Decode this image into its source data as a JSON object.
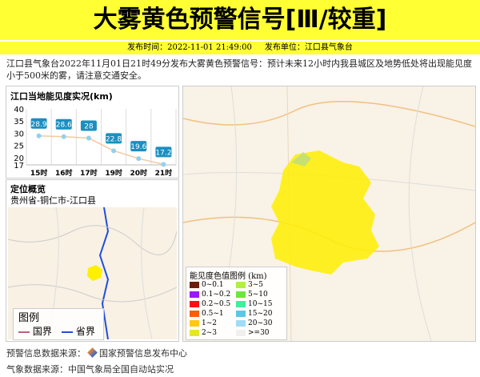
{
  "header": {
    "title": "大雾黄色预警信号[Ⅲ/较重]",
    "time_label": "发布时间：2022-11-01 21:49:00",
    "unit_label": "发布单位：江口县气象台"
  },
  "description": "江口县气象台2022年11月01日21时49分发布大雾黄色预警信号：预计未来12小时内我县城区及地势低处将出现能见度小于500米的雾，请注意交通安全。",
  "chart_data": {
    "type": "line",
    "title": "江口当地能见度实况(km)",
    "categories": [
      "15时",
      "16时",
      "17时",
      "19时",
      "20时",
      "21时"
    ],
    "values": [
      28.9,
      28.6,
      28,
      22.8,
      19.6,
      17.2
    ],
    "data_labels": [
      "28.9",
      "28.6",
      "28",
      "22.8",
      "19.6",
      "17.2"
    ],
    "ylim": [
      17,
      40
    ],
    "yticks": [
      "40",
      "35",
      "30",
      "25",
      "20",
      "17"
    ],
    "grid": true,
    "line_color": "#f2c9a0",
    "label_color": "#1a8fc0"
  },
  "location": {
    "title": "定位概览",
    "path": "贵州省-铜仁市-江口县",
    "legend_title": "图例",
    "legend": [
      {
        "label": "国界",
        "color": "#c0607a"
      },
      {
        "label": "省界",
        "color": "#1e4fdc"
      }
    ]
  },
  "visibility_legend": {
    "title": "能见度色值图例 (km)",
    "items": [
      {
        "label": "0~0.1",
        "color": "#6b1f0a"
      },
      {
        "label": "3~5",
        "color": "#b2f03c"
      },
      {
        "label": "0.1~0.2",
        "color": "#9b19f5"
      },
      {
        "label": "5~10",
        "color": "#6ee63c"
      },
      {
        "label": "0.2~0.5",
        "color": "#ff1010"
      },
      {
        "label": "10~15",
        "color": "#3cf0a0"
      },
      {
        "label": "0.5~1",
        "color": "#ff5a14"
      },
      {
        "label": "15~20",
        "color": "#5ac8e6"
      },
      {
        "label": "1~2",
        "color": "#ffc814"
      },
      {
        "label": "20~30",
        "color": "#a0dcf5"
      },
      {
        "label": "2~3",
        "color": "#e6e628"
      },
      {
        "label": ">=30",
        "color": "#f0f0f0"
      }
    ]
  },
  "footer": {
    "warning_source": "预警信息数据来源：",
    "warning_org": "国家预警信息发布中心",
    "weather_source": "气象数据来源：中国气象局全国自动站实况"
  }
}
